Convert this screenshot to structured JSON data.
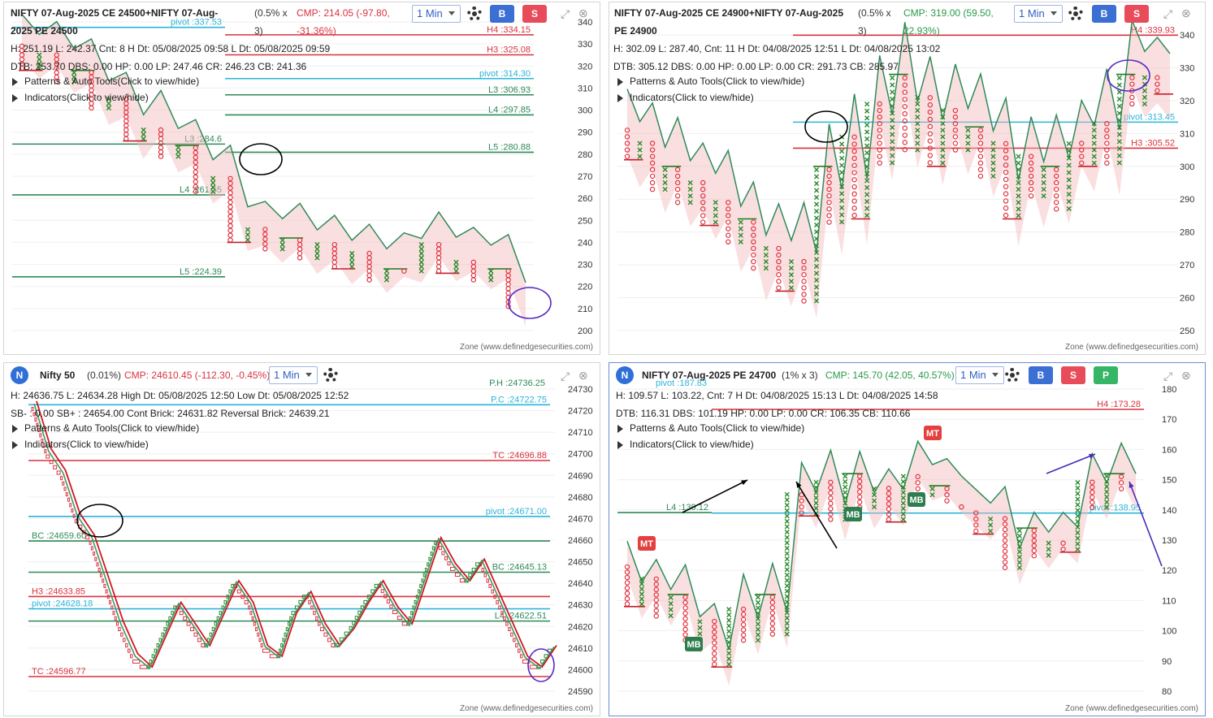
{
  "panels": [
    {
      "title": "NIFTY 07-Aug-2025 CE 24500+NIFTY 07-Aug-",
      "title2": "2025 PE 24500",
      "box": "(0.5% x",
      "box2": "3)",
      "cmp": "CMP: 214.05 (-97.80,",
      "cmp2": "-31.36%)",
      "cmp_color": "#d9323f",
      "timeframe": "1 Min",
      "info1": "H: 251.19 L: 242.37 Cnt: 8 H Dt: 05/08/2025 09:58 L Dt: 05/08/2025 09:59",
      "info2": "DTB: 253.70 DBS: 0.00 HP: 0.00 LP: 247.46 CR: 246.23 CB: 241.36",
      "menu1": "Patterns & Auto Tools(Click to view/hide)",
      "menu2": "Indicators(Click to view/hide)",
      "zone": "Zone (www.definedgesecurities.com)"
    },
    {
      "title": "NIFTY 07-Aug-2025 CE 24900+NIFTY 07-Aug-2025",
      "title2": "PE 24900",
      "box": "(0.5% x",
      "box2": "3)",
      "cmp": "CMP: 319.00 (59.50,",
      "cmp2": "22.93%)",
      "cmp_color": "#2a9a4a",
      "timeframe": "1 Min",
      "info1": "H: 302.09 L: 287.40, Cnt: 11 H Dt: 04/08/2025 12:51 L Dt: 04/08/2025 13:02",
      "info2": "DTB: 305.12 DBS: 0.00 HP: 0.00 LP: 0.00 CR: 291.73 CB: 285.97",
      "menu1": "Patterns & Auto Tools(Click to view/hide)",
      "menu2": "Indicators(Click to view/hide)",
      "zone": "Zone (www.definedgesecurities.com)"
    },
    {
      "logo": "N",
      "title": "Nifty 50",
      "box": "(0.01%)",
      "cmp": "CMP: 24610.45 (-112.30, -0.45%)",
      "cmp_color": "#d9323f",
      "timeframe": "1 Min",
      "info1": "H: 24636.75 L: 24634.28 High Dt: 05/08/2025 12:50 Low Dt: 05/08/2025 12:52",
      "info2": "SB- : 0.00 SB+ : 24654.00 Cont Brick: 24631.82 Reversal Brick: 24639.21",
      "menu1": "Patterns & Auto Tools(Click to view/hide)",
      "menu2": "Indicators(Click to view/hide)",
      "zone": "Zone (www.definedgesecurities.com)"
    },
    {
      "logo": "N",
      "title": "NIFTY 07-Aug-2025 PE 24700",
      "box": "(1% x 3)",
      "cmp": "CMP: 145.70 (42.05, 40.57%)",
      "cmp_color": "#2a9a4a",
      "timeframe": "1 Min",
      "info1": "H: 109.57 L: 103.22, Cnt: 7 H Dt: 04/08/2025 15:13 L Dt: 04/08/2025 14:58",
      "info2": "DTB: 116.31 DBS: 101.19 HP: 0.00 LP: 0.00 CR: 106.35 CB: 110.66",
      "menu1": "Patterns & Auto Tools(Click to view/hide)",
      "menu2": "Indicators(Click to view/hide)",
      "zone": "Zone (www.definedgesecurities.com)"
    }
  ],
  "buttons": {
    "b": "B",
    "s": "S",
    "p": "P"
  },
  "colors": {
    "x_green": "#2a8a2a",
    "o_red": "#e0323f",
    "res_red": "#d9323f",
    "sup_green": "#2f8a5a",
    "pivot_cyan": "#2bb5d9"
  },
  "chart_data": [
    {
      "type": "point-and-figure",
      "ylim": [
        200,
        340
      ],
      "yticks": [
        200,
        210,
        220,
        230,
        240,
        250,
        260,
        270,
        280,
        290,
        300,
        310,
        320,
        330,
        340
      ],
      "levels": [
        {
          "label": "H4 :334.15",
          "y": 334.15,
          "color": "red"
        },
        {
          "label": "H3 :325.08",
          "y": 325.08,
          "color": "red"
        },
        {
          "label": "pivot :314.30",
          "y": 314.3,
          "color": "cyan"
        },
        {
          "label": "L3 :306.93",
          "y": 306.93,
          "color": "green"
        },
        {
          "label": "L4 :297.85",
          "y": 297.85,
          "color": "green"
        },
        {
          "label": "L5 :280.88",
          "y": 280.88,
          "color": "green"
        },
        {
          "label": "L3 :284.6",
          "y": 284.6,
          "color": "green"
        },
        {
          "label": "L4 :261.55",
          "y": 261.55,
          "color": "green"
        },
        {
          "label": "L5 :224.39",
          "y": 224.39,
          "color": "green"
        },
        {
          "label": "pivot :337.53",
          "y": 337.53,
          "color": "cyan"
        }
      ]
    },
    {
      "type": "point-and-figure",
      "ylim": [
        250,
        340
      ],
      "yticks": [
        250,
        260,
        270,
        280,
        290,
        300,
        310,
        320,
        330,
        340
      ],
      "levels": [
        {
          "label": "H4 :339.93",
          "y": 339.93,
          "color": "red"
        },
        {
          "label": "pivot :313.45",
          "y": 313.45,
          "color": "cyan"
        },
        {
          "label": "H3 :305.52",
          "y": 305.52,
          "color": "red"
        }
      ]
    },
    {
      "type": "renko",
      "ylim": [
        24590,
        24730
      ],
      "yticks": [
        24590,
        24600,
        24610,
        24620,
        24630,
        24640,
        24650,
        24660,
        24670,
        24680,
        24690,
        24700,
        24710,
        24720,
        24730
      ],
      "levels": [
        {
          "label": "P.H :24736.25",
          "y": 24736.25,
          "color": "green"
        },
        {
          "label": "P.C :24722.75",
          "y": 24722.75,
          "color": "cyan"
        },
        {
          "label": "TC :24696.88",
          "y": 24696.88,
          "color": "red"
        },
        {
          "label": "pivot :24671.00",
          "y": 24671.0,
          "color": "cyan"
        },
        {
          "label": "BC :24659.60",
          "y": 24659.6,
          "color": "green"
        },
        {
          "label": "BC :24645.13",
          "y": 24645.13,
          "color": "green"
        },
        {
          "label": "H3 :24633.85",
          "y": 24633.85,
          "color": "red"
        },
        {
          "label": "pivot :24628.18",
          "y": 24628.18,
          "color": "cyan"
        },
        {
          "label": "L4 :24622.51",
          "y": 24622.51,
          "color": "green"
        },
        {
          "label": "TC :24596.77",
          "y": 24596.77,
          "color": "red"
        }
      ]
    },
    {
      "type": "point-and-figure",
      "ylim": [
        80,
        180
      ],
      "yticks": [
        80,
        90,
        100,
        110,
        120,
        130,
        140,
        150,
        160,
        170,
        180
      ],
      "levels": [
        {
          "label": "H4 :173.28",
          "y": 173.28,
          "color": "red"
        },
        {
          "label": "L4 :139.12",
          "y": 139.12,
          "color": "green"
        },
        {
          "label": "pivot :138.95",
          "y": 138.95,
          "color": "cyan"
        },
        {
          "label": "pivot :187.83",
          "y": 187.83,
          "color": "cyan"
        }
      ],
      "tags": [
        "MT",
        "MB",
        "MB",
        "MB",
        "MT"
      ]
    }
  ]
}
